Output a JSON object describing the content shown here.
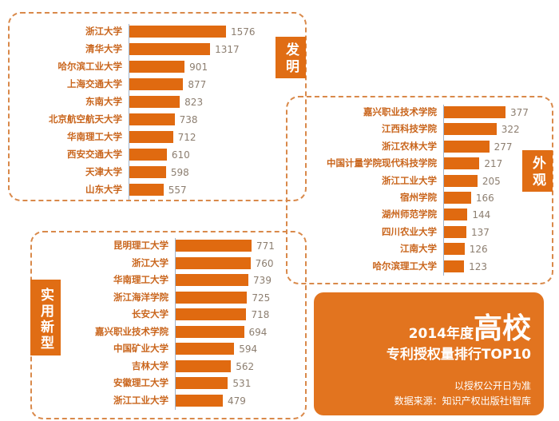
{
  "title": {
    "year": "2014年度",
    "headline": "高校",
    "subtitle": "专利授权量排行TOP10",
    "note": "以授权公开日为准",
    "source": "数据来源：知识产权出版社i智库"
  },
  "colors": {
    "bar": "#e06a10",
    "badge": "#e06d14",
    "label": "#c9651c",
    "value": "#8c7e70",
    "border": "#d9894a"
  },
  "chart_data": [
    {
      "type": "bar",
      "title": "发明",
      "orientation": "horizontal",
      "categories": [
        "浙江大学",
        "清华大学",
        "哈尔滨工业大学",
        "上海交通大学",
        "东南大学",
        "北京航空航天大学",
        "华南理工大学",
        "西安交通大学",
        "天津大学",
        "山东大学"
      ],
      "values": [
        1576,
        1317,
        901,
        877,
        823,
        738,
        712,
        610,
        598,
        557
      ]
    },
    {
      "type": "bar",
      "title": "外观",
      "orientation": "horizontal",
      "categories": [
        "嘉兴职业技术学院",
        "江西科技学院",
        "浙江农林大学",
        "中国计量学院现代科技学院",
        "浙江工业大学",
        "宿州学院",
        "湖州师范学院",
        "四川农业大学",
        "江南大学",
        "哈尔滨理工大学"
      ],
      "values": [
        377,
        322,
        277,
        217,
        205,
        166,
        144,
        137,
        126,
        123
      ]
    },
    {
      "type": "bar",
      "title": "实用新型",
      "orientation": "horizontal",
      "categories": [
        "昆明理工大学",
        "浙江大学",
        "华南理工大学",
        "浙江海洋学院",
        "长安大学",
        "嘉兴职业技术学院",
        "中国矿业大学",
        "吉林大学",
        "安徽理工大学",
        "浙江工业大学"
      ],
      "values": [
        771,
        760,
        739,
        725,
        718,
        694,
        594,
        562,
        531,
        479
      ]
    }
  ]
}
